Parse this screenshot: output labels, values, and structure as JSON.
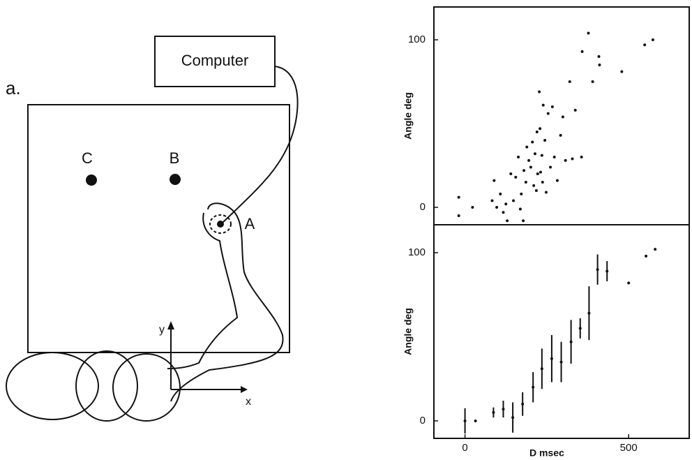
{
  "diagram": {
    "label": "a.",
    "computer": "Computer",
    "targets": [
      "C",
      "B",
      "A"
    ],
    "axes": {
      "x": "x",
      "y": "y"
    }
  },
  "chart_data": [
    {
      "type": "scatter",
      "ylabel": "Angle deg",
      "x": [
        -19,
        -19,
        23,
        83,
        89,
        97,
        108,
        117,
        125,
        129,
        140,
        148,
        155,
        163,
        169,
        172,
        178,
        180,
        186,
        189,
        195,
        201,
        206,
        210,
        214,
        218,
        220,
        222,
        227,
        229,
        231,
        235,
        237,
        239,
        244,
        248,
        254,
        261,
        267,
        273,
        282,
        292,
        299,
        307,
        320,
        328,
        337,
        356,
        358,
        377,
        390,
        409,
        411,
        479,
        549,
        574
      ],
      "values": [
        6,
        -5,
        0,
        4,
        16,
        0,
        8,
        -3,
        2,
        -8,
        20,
        4,
        18,
        30,
        -1,
        8,
        -8,
        22,
        15,
        36,
        28,
        24,
        39,
        13,
        32,
        10,
        45,
        20,
        69,
        47,
        21,
        31,
        15,
        61,
        40,
        9,
        56,
        24,
        60,
        30,
        16,
        43,
        54,
        28,
        75,
        29,
        58,
        30,
        93,
        104,
        75,
        90,
        85,
        81,
        97,
        100
      ],
      "xlim": [
        -95,
        685
      ],
      "ylim": [
        -10.4,
        119.6
      ],
      "yticks": [
        0,
        100
      ]
    },
    {
      "type": "errorbar",
      "ylabel": "Angle deg",
      "xlabel": "D msec",
      "x": [
        0,
        32,
        87,
        117,
        146,
        176,
        208,
        235,
        265,
        294,
        324,
        352,
        379,
        405,
        434,
        500,
        553,
        581
      ],
      "values": [
        0,
        0,
        5,
        7,
        2,
        10,
        20,
        31,
        37,
        35,
        47,
        55,
        64,
        90,
        89,
        82,
        98,
        102
      ],
      "errors": [
        7.5,
        0,
        3,
        5,
        9,
        7,
        9,
        12,
        14,
        12,
        13,
        6,
        16,
        9,
        6,
        0,
        0,
        0
      ],
      "xlim": [
        -95,
        685
      ],
      "ylim": [
        -10.4,
        116.6
      ],
      "xticks": [
        0,
        500
      ],
      "yticks": [
        0,
        100
      ]
    }
  ]
}
